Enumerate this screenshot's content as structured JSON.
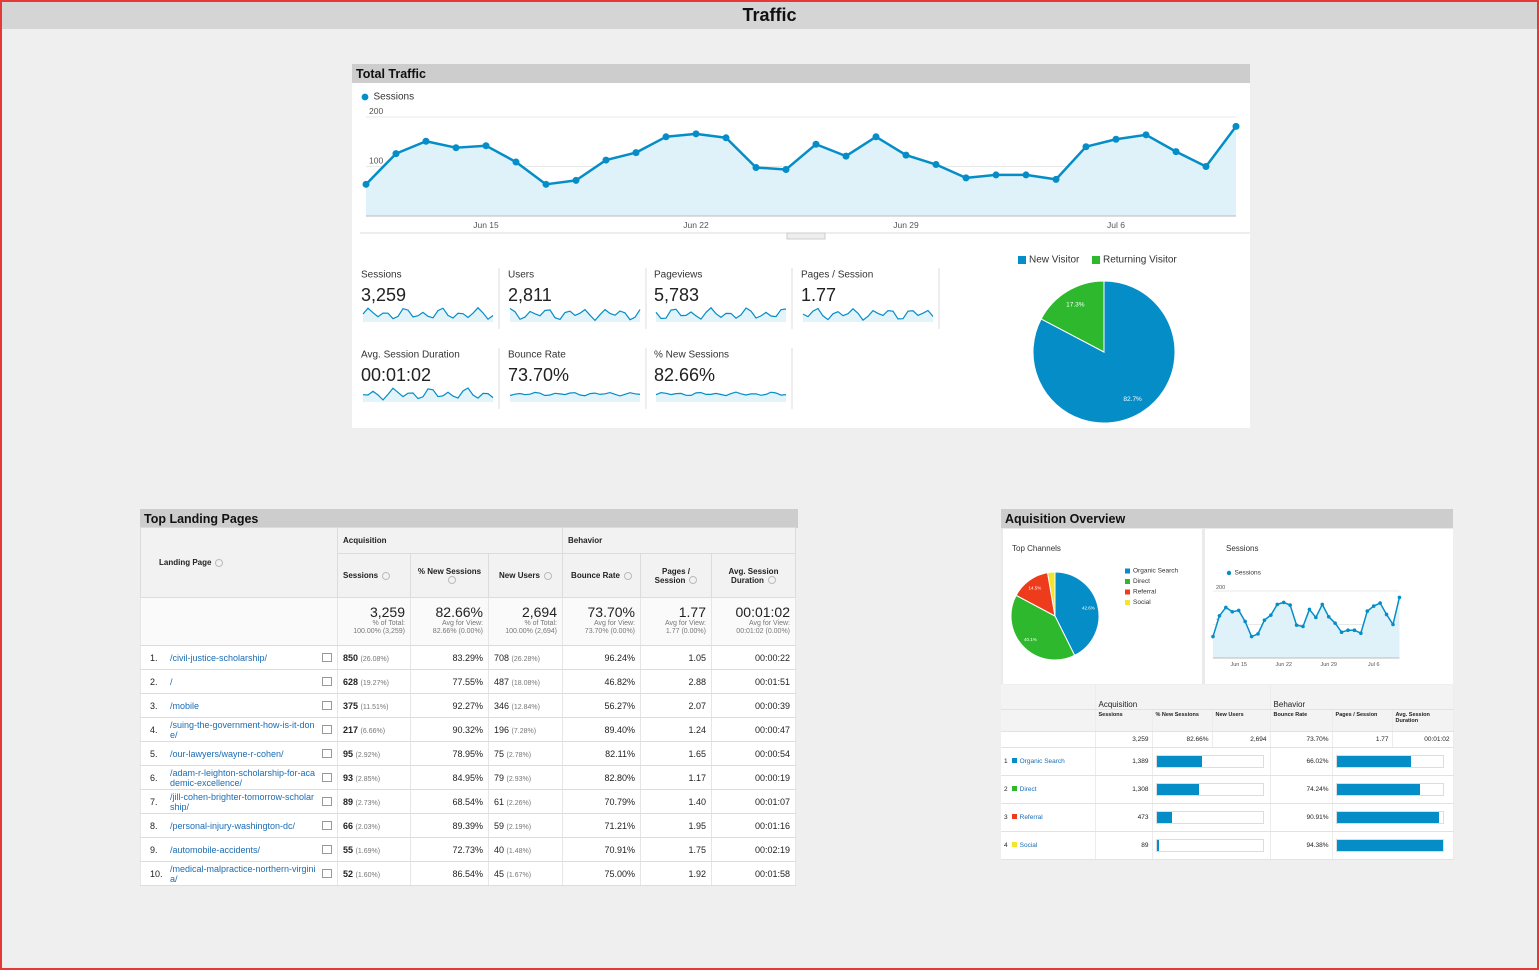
{
  "header": {
    "title": "Traffic"
  },
  "total_traffic": {
    "title": "Total Traffic",
    "line_chart": {
      "type": "line",
      "categories": [
        null,
        null,
        null,
        null,
        "Jun 15",
        null,
        null,
        null,
        null,
        null,
        null,
        "Jun 22",
        null,
        null,
        null,
        null,
        null,
        null,
        "Jun 29",
        null,
        null,
        null,
        null,
        null,
        null,
        "Jul 6",
        null,
        null,
        null,
        null
      ],
      "series": [
        {
          "name": "Sessions",
          "color": "#058dc7",
          "values": [
            64,
            126,
            151,
            138,
            142,
            109,
            64,
            72,
            113,
            128,
            160,
            166,
            158,
            98,
            94,
            145,
            121,
            160,
            123,
            104,
            77,
            83,
            83,
            74,
            140,
            155,
            164,
            130,
            100,
            181
          ]
        }
      ],
      "ylim": [
        0,
        200
      ],
      "yticks": [
        100,
        200
      ],
      "grid": true
    },
    "metrics": [
      {
        "label": "Sessions",
        "value": "3,259"
      },
      {
        "label": "Users",
        "value": "2,811"
      },
      {
        "label": "Pageviews",
        "value": "5,783"
      },
      {
        "label": "Pages / Session",
        "value": "1.77"
      },
      {
        "label": "Avg. Session Duration",
        "value": "00:01:02"
      },
      {
        "label": "Bounce Rate",
        "value": "73.70%"
      },
      {
        "label": "% New Sessions",
        "value": "82.66%"
      }
    ],
    "pie_chart": {
      "type": "pie",
      "categories": [
        "New Visitor",
        "Returning Visitor"
      ],
      "values": [
        82.7,
        17.3
      ],
      "value_labels": [
        "82.7%",
        "17.3%"
      ],
      "colors": [
        "#058dc7",
        "#2db82d"
      ]
    }
  },
  "landing_pages": {
    "title": "Top Landing Pages",
    "columns": {
      "page": "Landing Page",
      "acquisition": "Acquisition",
      "behavior": "Behavior",
      "sessions": "Sessions",
      "new_sessions": "% New Sessions",
      "new_users": "New Users",
      "bounce_rate": "Bounce Rate",
      "pages_session": "Pages / Session",
      "duration": "Avg. Session Duration"
    },
    "totals": [
      {
        "value": "3,259",
        "note": "% of Total:",
        "detail": "100.00% (3,259)"
      },
      {
        "value": "82.66%",
        "note": "Avg for View:",
        "detail": "82.66% (0.00%)"
      },
      {
        "value": "2,694",
        "note": "% of Total:",
        "detail": "100.00% (2,694)"
      },
      {
        "value": "73.70%",
        "note": "Avg for View:",
        "detail": "73.70% (0.00%)"
      },
      {
        "value": "1.77",
        "note": "Avg for View:",
        "detail": "1.77 (0.00%)"
      },
      {
        "value": "00:01:02",
        "note": "Avg for View:",
        "detail": "00:01:02 (0.00%)"
      }
    ],
    "rows": [
      {
        "rank": "1.",
        "page": "/civil-justice-scholarship/",
        "sessions": "850",
        "sessions_pct": "(26.08%)",
        "new_sessions": "83.29%",
        "new_users": "708",
        "new_users_pct": "(26.28%)",
        "bounce_rate": "96.24%",
        "pages_session": "1.05",
        "duration": "00:00:22"
      },
      {
        "rank": "2.",
        "page": "/",
        "sessions": "628",
        "sessions_pct": "(19.27%)",
        "new_sessions": "77.55%",
        "new_users": "487",
        "new_users_pct": "(18.08%)",
        "bounce_rate": "46.82%",
        "pages_session": "2.88",
        "duration": "00:01:51"
      },
      {
        "rank": "3.",
        "page": "/mobile",
        "sessions": "375",
        "sessions_pct": "(11.51%)",
        "new_sessions": "92.27%",
        "new_users": "346",
        "new_users_pct": "(12.84%)",
        "bounce_rate": "56.27%",
        "pages_session": "2.07",
        "duration": "00:00:39"
      },
      {
        "rank": "4.",
        "page": "/suing-the-government-how-is-it-done/",
        "sessions": "217",
        "sessions_pct": "(6.66%)",
        "new_sessions": "90.32%",
        "new_users": "196",
        "new_users_pct": "(7.28%)",
        "bounce_rate": "89.40%",
        "pages_session": "1.24",
        "duration": "00:00:47"
      },
      {
        "rank": "5.",
        "page": "/our-lawyers/wayne-r-cohen/",
        "sessions": "95",
        "sessions_pct": "(2.92%)",
        "new_sessions": "78.95%",
        "new_users": "75",
        "new_users_pct": "(2.78%)",
        "bounce_rate": "82.11%",
        "pages_session": "1.65",
        "duration": "00:00:54"
      },
      {
        "rank": "6.",
        "page": "/adam-r-leighton-scholarship-for-academic-excellence/",
        "sessions": "93",
        "sessions_pct": "(2.85%)",
        "new_sessions": "84.95%",
        "new_users": "79",
        "new_users_pct": "(2.93%)",
        "bounce_rate": "82.80%",
        "pages_session": "1.17",
        "duration": "00:00:19"
      },
      {
        "rank": "7.",
        "page": "/jill-cohen-brighter-tomorrow-scholarship/",
        "sessions": "89",
        "sessions_pct": "(2.73%)",
        "new_sessions": "68.54%",
        "new_users": "61",
        "new_users_pct": "(2.26%)",
        "bounce_rate": "70.79%",
        "pages_session": "1.40",
        "duration": "00:01:07"
      },
      {
        "rank": "8.",
        "page": "/personal-injury-washington-dc/",
        "sessions": "66",
        "sessions_pct": "(2.03%)",
        "new_sessions": "89.39%",
        "new_users": "59",
        "new_users_pct": "(2.19%)",
        "bounce_rate": "71.21%",
        "pages_session": "1.95",
        "duration": "00:01:16"
      },
      {
        "rank": "9.",
        "page": "/automobile-accidents/",
        "sessions": "55",
        "sessions_pct": "(1.69%)",
        "new_sessions": "72.73%",
        "new_users": "40",
        "new_users_pct": "(1.48%)",
        "bounce_rate": "70.91%",
        "pages_session": "1.75",
        "duration": "00:02:19"
      },
      {
        "rank": "10.",
        "page": "/medical-malpractice-northern-virginia/",
        "sessions": "52",
        "sessions_pct": "(1.60%)",
        "new_sessions": "86.54%",
        "new_users": "45",
        "new_users_pct": "(1.67%)",
        "bounce_rate": "75.00%",
        "pages_session": "1.92",
        "duration": "00:01:58"
      }
    ]
  },
  "acquisition": {
    "title": "Aquisition Overview",
    "top_channels": {
      "title": "Top Channels",
      "type": "pie",
      "categories": [
        "Organic Search",
        "Direct",
        "Referral",
        "Social"
      ],
      "values": [
        42.6,
        40.1,
        14.5,
        2.7
      ],
      "value_labels": [
        "42.6%",
        "40.1%",
        "14.5%",
        null
      ],
      "colors": [
        "#058dc7",
        "#2db82d",
        "#ed3b1c",
        "#f2e52b"
      ]
    },
    "sessions_chart": {
      "title": "Sessions"
    },
    "table": {
      "columns": {
        "acquisition": "Acquisition",
        "behavior": "Behavior",
        "sessions": "Sessions",
        "new_sessions": "% New Sessions",
        "new_users": "New Users",
        "bounce_rate": "Bounce Rate",
        "pages_session": "Pages / Session",
        "duration": "Avg. Session Duration"
      },
      "totals": [
        "3,259",
        "82.66%",
        "2,694",
        "73.70%",
        "1.77",
        "00:01:02"
      ],
      "rows": [
        {
          "rank": "1",
          "channel": "Organic Search",
          "sessions": 1389,
          "sessions_label": "1,389",
          "bounce_rate": 66.02,
          "bounce_rate_label": "66.02%"
        },
        {
          "rank": "2",
          "channel": "Direct",
          "sessions": 1308,
          "sessions_label": "1,308",
          "bounce_rate": 74.24,
          "bounce_rate_label": "74.24%"
        },
        {
          "rank": "3",
          "channel": "Referral",
          "sessions": 473,
          "sessions_label": "473",
          "bounce_rate": 90.91,
          "bounce_rate_label": "90.91%"
        },
        {
          "rank": "4",
          "channel": "Social",
          "sessions": 89,
          "sessions_label": "89",
          "bounce_rate": 94.38,
          "bounce_rate_label": "94.38%"
        }
      ]
    }
  }
}
